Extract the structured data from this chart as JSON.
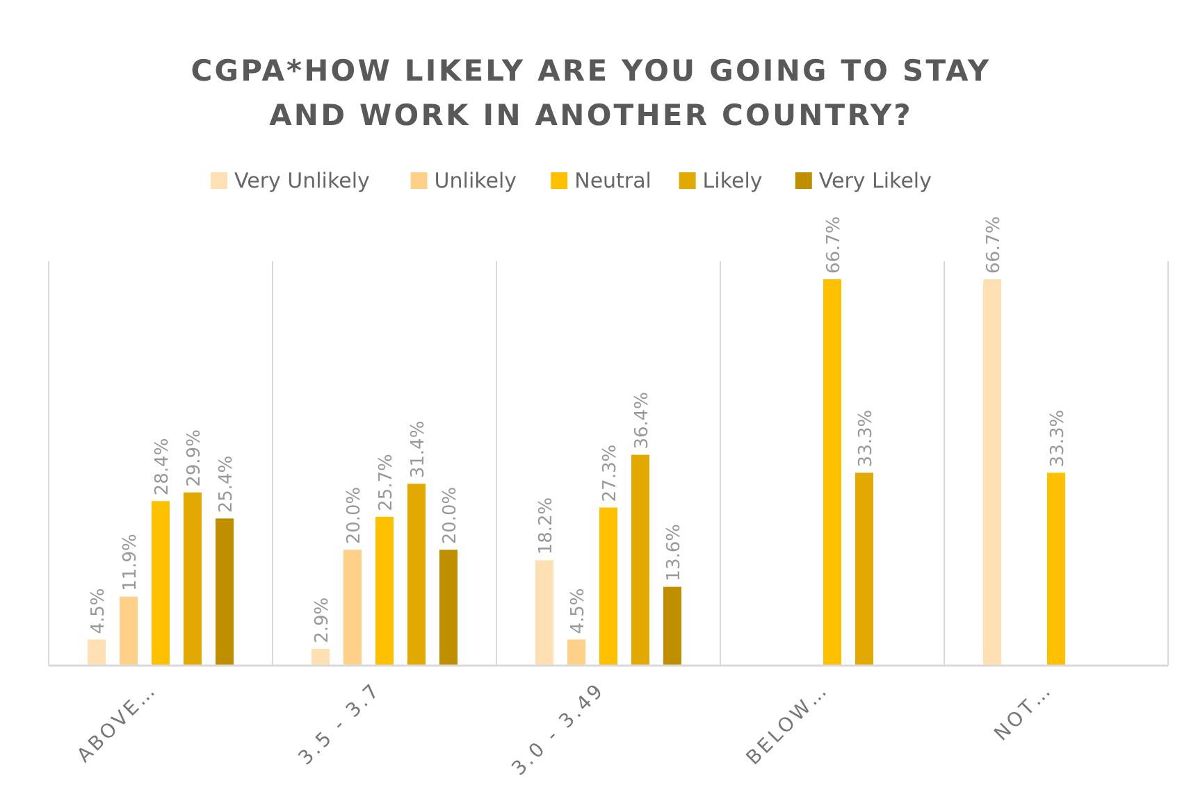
{
  "chart_data": {
    "type": "bar",
    "title": "CGPA*HOW LIKELY ARE YOU GOING TO STAY AND WORK IN ANOTHER COUNTRY?",
    "categories": [
      "ABOVE…",
      "3.5 - 3.7",
      "3.0 - 3.49",
      "BELOW…",
      "NOT…"
    ],
    "legend": "top",
    "grid": "x",
    "series": [
      {
        "name": "Very Unlikely",
        "color": "#ffe0b3",
        "values": [
          4.5,
          2.9,
          18.2,
          null,
          66.7
        ],
        "value_labels": [
          "4.5%",
          "2.9%",
          "18.2%",
          null,
          "66.7%"
        ]
      },
      {
        "name": "Unlikely",
        "color": "#fed088",
        "values": [
          11.9,
          20.0,
          4.5,
          null,
          null
        ],
        "value_labels": [
          "11.9%",
          "20.0%",
          "4.5%",
          null,
          null
        ]
      },
      {
        "name": "Neutral",
        "color": "#ffc000",
        "values": [
          28.4,
          25.7,
          27.3,
          66.7,
          33.3
        ],
        "value_labels": [
          "28.4%",
          "25.7%",
          "27.3%",
          "66.7%",
          "33.3%"
        ]
      },
      {
        "name": "Likely",
        "color": "#e2aa00",
        "values": [
          29.9,
          31.4,
          36.4,
          33.3,
          null
        ],
        "value_labels": [
          "29.9%",
          "31.4%",
          "36.4%",
          "33.3%",
          null
        ]
      },
      {
        "name": "Very Likely",
        "color": "#bf8f00",
        "values": [
          25.4,
          20.0,
          13.6,
          null,
          null
        ],
        "value_labels": [
          "25.4%",
          "20.0%",
          "13.6%",
          null,
          null
        ]
      }
    ]
  }
}
